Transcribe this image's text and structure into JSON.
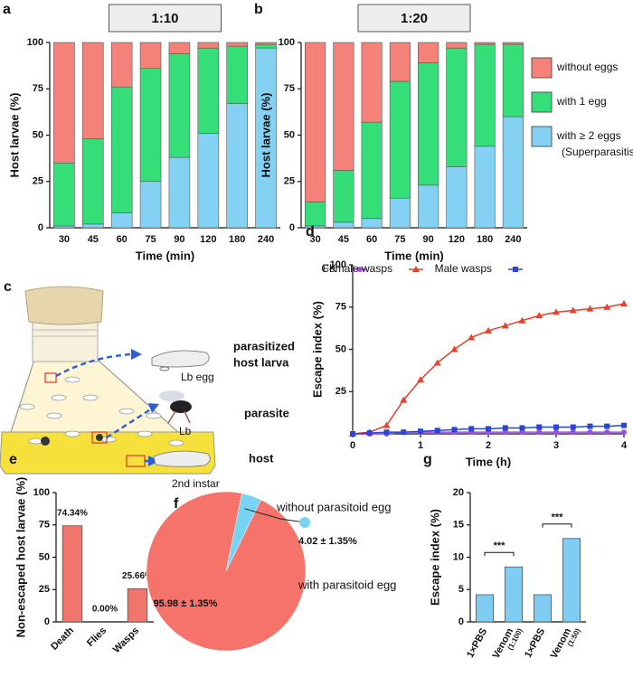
{
  "chart_data": [
    {
      "type": "stacked_bar",
      "panel": "a",
      "title": "1:10",
      "categories": [
        "30",
        "45",
        "60",
        "75",
        "90",
        "120",
        "180",
        "240"
      ],
      "series": [
        {
          "name": "with ≥ 2 eggs",
          "color": "#84d1f3",
          "values": [
            1,
            2,
            8,
            25,
            38,
            51,
            67,
            97
          ]
        },
        {
          "name": "with 1 egg",
          "color": "#35de79",
          "values": [
            34,
            46,
            68,
            61,
            56,
            46,
            31,
            2
          ]
        },
        {
          "name": "without eggs",
          "color": "#f4827b",
          "values": [
            65,
            52,
            24,
            14,
            6,
            3,
            2,
            1
          ]
        }
      ],
      "ylim": [
        0,
        100
      ],
      "yticks": [
        0,
        25,
        50,
        75,
        100
      ],
      "xlabel": "Time (min)",
      "ylabel": "Host larvae (%)"
    },
    {
      "type": "stacked_bar",
      "panel": "b",
      "title": "1:20",
      "categories": [
        "30",
        "45",
        "60",
        "75",
        "90",
        "120",
        "180",
        "240"
      ],
      "series": [
        {
          "name": "with ≥ 2 eggs",
          "color": "#84d1f3",
          "values": [
            1,
            3,
            5,
            16,
            23,
            33,
            44,
            60
          ]
        },
        {
          "name": "with 1 egg",
          "color": "#35de79",
          "values": [
            13,
            28,
            52,
            63,
            66,
            64,
            55,
            39
          ]
        },
        {
          "name": "without eggs",
          "color": "#f4827b",
          "values": [
            86,
            69,
            43,
            21,
            11,
            3,
            1,
            1
          ]
        }
      ],
      "ylim": [
        0,
        100
      ],
      "yticks": [
        0,
        25,
        50,
        75,
        100
      ],
      "xlabel": "Time (min)",
      "ylabel": "Host larvae (%)",
      "legend": "right",
      "legend_note": "(Superparasitism)"
    },
    {
      "type": "line",
      "panel": "d",
      "x": [
        0,
        0.25,
        0.5,
        0.75,
        1,
        1.25,
        1.5,
        1.75,
        2,
        2.25,
        2.5,
        2.75,
        3,
        3.25,
        3.5,
        3.75,
        4
      ],
      "series": [
        {
          "name": "CK",
          "color": "#9b4de0",
          "marker": "circle",
          "values": [
            0,
            0,
            0,
            1,
            1,
            1,
            1,
            1,
            1,
            1,
            1,
            1,
            1,
            1,
            1,
            1,
            1
          ]
        },
        {
          "name": "Female wasps",
          "color": "#e8402a",
          "marker": "triangle",
          "values": [
            0,
            1,
            5,
            20,
            32,
            42,
            50,
            57,
            61,
            64,
            67,
            70,
            72,
            73,
            74,
            75,
            77
          ]
        },
        {
          "name": "Male wasps",
          "color": "#2b45d8",
          "marker": "square",
          "values": [
            0,
            0.5,
            1,
            1,
            1.5,
            2,
            2.5,
            3,
            3,
            3.5,
            3.5,
            4,
            4,
            4,
            4.5,
            4.5,
            5
          ]
        }
      ],
      "xlim": [
        0,
        4
      ],
      "xticks": [
        0,
        1,
        2,
        3,
        4
      ],
      "ylim": [
        0,
        100
      ],
      "yticks": [
        25,
        50,
        75,
        100
      ],
      "xlabel": "Time (h)",
      "ylabel": "Escape index (%)",
      "legend": "top"
    },
    {
      "type": "bar",
      "panel": "e",
      "categories": [
        "Death",
        "Flies",
        "Wasps"
      ],
      "values": [
        74.34,
        0,
        25.66
      ],
      "value_labels": [
        "74.34%",
        "0.00%",
        "25.66%"
      ],
      "color": "#f0756c",
      "ylim": [
        0,
        100
      ],
      "yticks": [
        0,
        25,
        50,
        75,
        100
      ],
      "ylabel": "Non-escaped host larvae (%)"
    },
    {
      "type": "pie",
      "panel": "f",
      "categories": [
        "with parasitoid egg",
        "without parasitoid egg"
      ],
      "values": [
        95.98,
        4.02
      ],
      "value_labels": [
        "95.98 ± 1.35%",
        "4.02 ± 1.35%"
      ],
      "colors": [
        "#f5736b",
        "#78d3f3"
      ]
    },
    {
      "type": "bar",
      "panel": "g",
      "categories": [
        "1×PBS",
        "Venom",
        "1×PBS",
        "Venom"
      ],
      "category_notes": [
        null,
        "(1:100)",
        null,
        "(1:50)"
      ],
      "values": [
        4.2,
        8.5,
        4.2,
        12.9
      ],
      "color": "#7fcdf2",
      "ylim": [
        0,
        20
      ],
      "yticks": [
        0,
        5,
        10,
        15,
        20
      ],
      "ylabel": "Escape index (%)",
      "annotations": [
        "***",
        "***"
      ]
    }
  ],
  "diagram": {
    "panel": "c",
    "labels": {
      "parasitized": "parasitized",
      "host_larva": "host larva",
      "lb_egg": "Lb egg",
      "parasite": "parasite",
      "lb": "Lb",
      "host": "host",
      "instar": "2nd instar"
    }
  }
}
